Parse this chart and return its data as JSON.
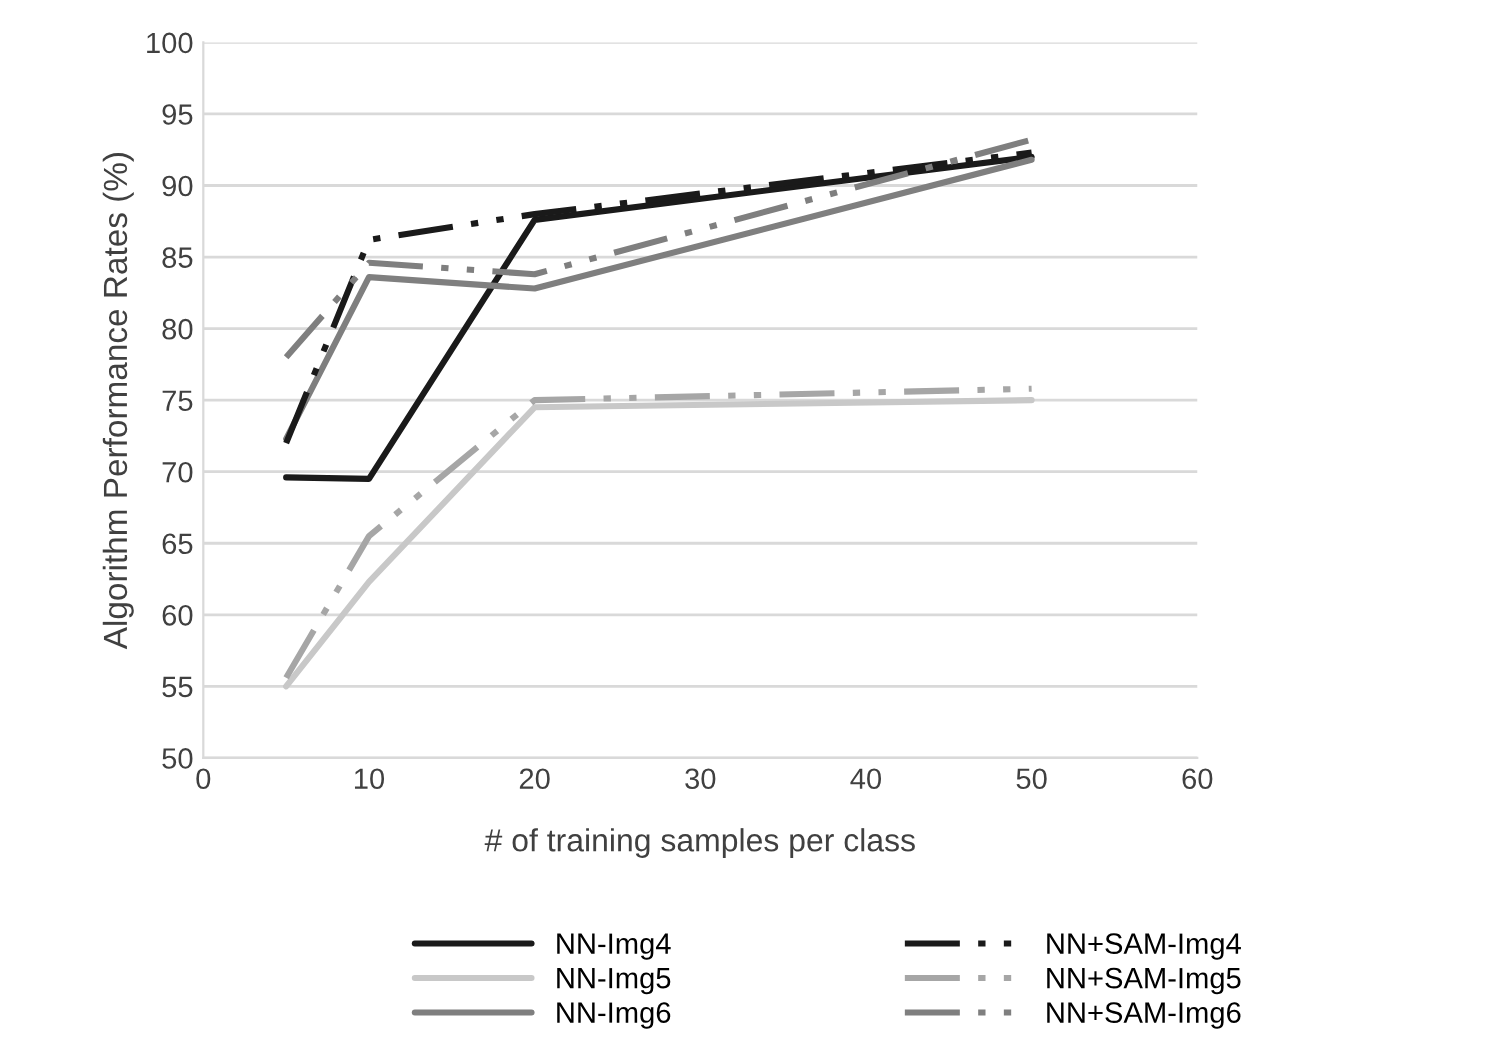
{
  "chart_data": {
    "type": "line",
    "xlabel": "# of training samples per class",
    "ylabel": "Algorithm Performance Rates (%)",
    "xlim": [
      0,
      60
    ],
    "xticks": [
      0,
      10,
      20,
      30,
      40,
      50,
      60
    ],
    "ylim": [
      50,
      100
    ],
    "yticks": [
      50,
      55,
      60,
      65,
      70,
      75,
      80,
      85,
      90,
      95,
      100
    ],
    "grid": "y",
    "legend": "bottom",
    "marker": "none",
    "series": [
      {
        "name": "NN-Img4",
        "color": "#1a1a1a",
        "line_style": "solid",
        "x": [
          5,
          10,
          20,
          50
        ],
        "values": [
          69.6,
          69.5,
          87.6,
          92.0
        ]
      },
      {
        "name": "NN-Img5",
        "color": "#c8c8c8",
        "line_style": "solid",
        "x": [
          5,
          10,
          20,
          50
        ],
        "values": [
          55.0,
          62.3,
          74.5,
          75.0
        ]
      },
      {
        "name": "NN-Img6",
        "color": "#7f7f7f",
        "line_style": "solid",
        "x": [
          5,
          10,
          20,
          50
        ],
        "values": [
          72.3,
          83.6,
          82.8,
          91.8
        ]
      },
      {
        "name": "NN+SAM-Img4",
        "color": "#1a1a1a",
        "line_style": "dashed",
        "x": [
          5,
          10,
          20,
          50
        ],
        "values": [
          72.0,
          86.2,
          88.0,
          92.3
        ]
      },
      {
        "name": "NN+SAM-Img5",
        "color": "#a6a6a6",
        "line_style": "dashed",
        "x": [
          5,
          10,
          20,
          50
        ],
        "values": [
          55.6,
          65.5,
          75.0,
          75.8
        ]
      },
      {
        "name": "NN+SAM-Img6",
        "color": "#7f7f7f",
        "line_style": "dashed",
        "x": [
          5,
          10,
          20,
          50
        ],
        "values": [
          78.0,
          84.6,
          83.8,
          93.2
        ]
      }
    ]
  }
}
